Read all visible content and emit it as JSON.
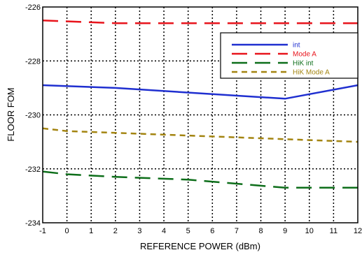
{
  "chart_data": {
    "type": "line",
    "title": "",
    "xlabel": "REFERENCE POWER  (dBm)",
    "ylabel": "FLOOR FOM",
    "xlim": [
      -1,
      12
    ],
    "ylim": [
      -234,
      -226
    ],
    "xticks": [
      "-1",
      "0",
      "1",
      "2",
      "3",
      "4",
      "5",
      "6",
      "7",
      "8",
      "9",
      "10",
      "11",
      "12"
    ],
    "yticks": [
      "-226",
      "-228",
      "-230",
      "-232",
      "-234"
    ],
    "grid": true,
    "legend_position": "top-right",
    "series": [
      {
        "name": "int",
        "color": "#1f2fd0",
        "dash": "solid",
        "x": [
          -1,
          2,
          9,
          12
        ],
        "y": [
          -228.9,
          -229.0,
          -229.4,
          -228.9
        ]
      },
      {
        "name": "Mode A",
        "color": "#e8141c",
        "dash": "long-dash",
        "x": [
          -1,
          2,
          9,
          12
        ],
        "y": [
          -226.5,
          -226.6,
          -226.6,
          -226.6
        ]
      },
      {
        "name": "HiK int",
        "color": "#0d6e1a",
        "dash": "long-dash",
        "x": [
          -1,
          0,
          2,
          5,
          9,
          12
        ],
        "y": [
          -232.1,
          -232.2,
          -232.3,
          -232.4,
          -232.7,
          -232.7
        ]
      },
      {
        "name": "HiK Mode A",
        "color": "#a38410",
        "dash": "short-dash",
        "x": [
          -1,
          0,
          3,
          6,
          9,
          12
        ],
        "y": [
          -230.5,
          -230.6,
          -230.7,
          -230.8,
          -230.9,
          -231.0
        ]
      }
    ]
  }
}
